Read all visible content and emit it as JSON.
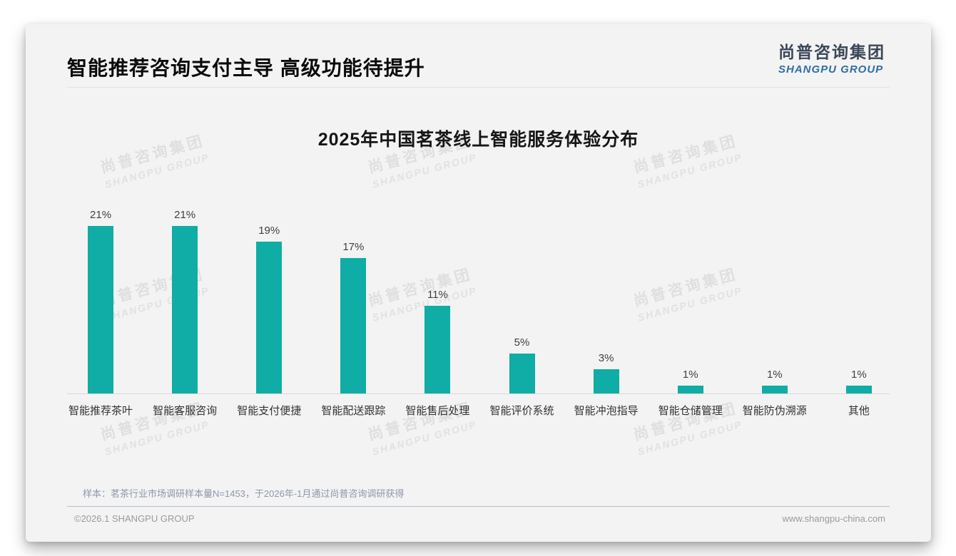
{
  "page": {
    "title": "智能推荐咨询支付主导 高级功能待提升",
    "logo": {
      "cn": "尚普咨询集团",
      "en": "SHANGPU GROUP"
    },
    "watermark": {
      "cn": "尚普咨询集团",
      "en": "SHANGPU GROUP"
    },
    "note": "样本：茗茶行业市场调研样本量N=1453，于2026年-1月通过尚普咨询调研获得",
    "footer": {
      "copyright": "©2026.1 SHANGPU GROUP",
      "website": "www.shangpu-china.com"
    }
  },
  "chart_data": {
    "type": "bar",
    "title": "2025年中国茗茶线上智能服务体验分布",
    "categories": [
      "智能推荐茶叶",
      "智能客服咨询",
      "智能支付便捷",
      "智能配送跟踪",
      "智能售后处理",
      "智能评价系统",
      "智能冲泡指导",
      "智能仓储管理",
      "智能防伪溯源",
      "其他"
    ],
    "values": [
      21,
      21,
      19,
      17,
      11,
      5,
      3,
      1,
      1,
      1
    ],
    "data_labels": [
      "21%",
      "21%",
      "19%",
      "17%",
      "11%",
      "5%",
      "3%",
      "1%",
      "1%",
      "1%"
    ],
    "unit": "%",
    "bar_color": "#0fada5",
    "ylim": [
      0,
      23.5
    ],
    "xlabel": "",
    "ylabel": "",
    "grid": false,
    "legend": "none",
    "value_label_color": "#404040",
    "category_label_color": "#333333",
    "axis_line_color": "#d8d8d8"
  },
  "colors": {
    "accent_teal": "#0fada5",
    "logo_blue": "#2f6da8",
    "logo_dark": "#3c4858",
    "slide_background": "#f3f3f3",
    "note_gray_blue": "#8d98ab"
  }
}
